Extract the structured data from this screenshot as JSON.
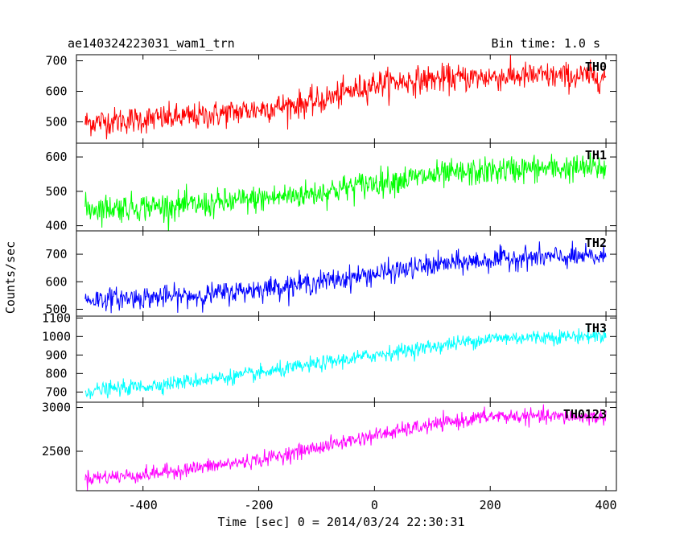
{
  "header": {
    "left_title": "ae140324223031_wam1_trn",
    "right_title": "Bin time: 1.0 s"
  },
  "chart_data": {
    "type": "line",
    "title": "ae140324223031_wam1_trn",
    "subtitle": "Bin time: 1.0 s",
    "xlabel": "Time [sec] 0 = 2014/03/24 22:30:31",
    "ylabel": "Counts/sec",
    "xlim": [
      -515,
      418
    ],
    "x_ticks": [
      -400,
      -200,
      0,
      200,
      400
    ],
    "x_start": -500,
    "x_end": 400,
    "x_step": 1,
    "grid": false,
    "legend": "none",
    "panels": [
      {
        "name": "TH0",
        "color": "#ff0000",
        "ylim": [
          430,
          720
        ],
        "y_ticks": [
          500,
          600,
          700
        ],
        "trend": [
          [
            -500,
            498
          ],
          [
            -300,
            518
          ],
          [
            -100,
            565
          ],
          [
            0,
            625
          ],
          [
            100,
            640
          ],
          [
            250,
            650
          ],
          [
            400,
            648
          ]
        ],
        "noise": 45
      },
      {
        "name": "TH1",
        "color": "#00ff00",
        "ylim": [
          385,
          640
        ],
        "y_ticks": [
          400,
          500,
          600
        ],
        "trend": [
          [
            -500,
            450
          ],
          [
            -300,
            460
          ],
          [
            -100,
            495
          ],
          [
            0,
            525
          ],
          [
            100,
            545
          ],
          [
            250,
            565
          ],
          [
            400,
            568
          ]
        ],
        "noise": 40
      },
      {
        "name": "TH2",
        "color": "#0000ff",
        "ylim": [
          475,
          785
        ],
        "y_ticks": [
          500,
          600,
          700
        ],
        "trend": [
          [
            -500,
            535
          ],
          [
            -300,
            550
          ],
          [
            -100,
            598
          ],
          [
            0,
            628
          ],
          [
            100,
            660
          ],
          [
            250,
            688
          ],
          [
            400,
            690
          ]
        ],
        "noise": 40
      },
      {
        "name": "TH3",
        "color": "#00ffff",
        "ylim": [
          645,
          1110
        ],
        "y_ticks": [
          700,
          800,
          900,
          1000,
          1100
        ],
        "trend": [
          [
            -500,
            705
          ],
          [
            -400,
            730
          ],
          [
            -200,
            800
          ],
          [
            0,
            900
          ],
          [
            100,
            945
          ],
          [
            200,
            990
          ],
          [
            400,
            1005
          ]
        ],
        "noise": 40
      },
      {
        "name": "TH0123",
        "color": "#ff00ff",
        "ylim": [
          2050,
          3060
        ],
        "y_ticks": [
          2500,
          3000
        ],
        "trend": [
          [
            -500,
            2195
          ],
          [
            -400,
            2230
          ],
          [
            -200,
            2400
          ],
          [
            0,
            2680
          ],
          [
            100,
            2800
          ],
          [
            200,
            2900
          ],
          [
            400,
            2890
          ]
        ],
        "noise": 85
      }
    ]
  }
}
